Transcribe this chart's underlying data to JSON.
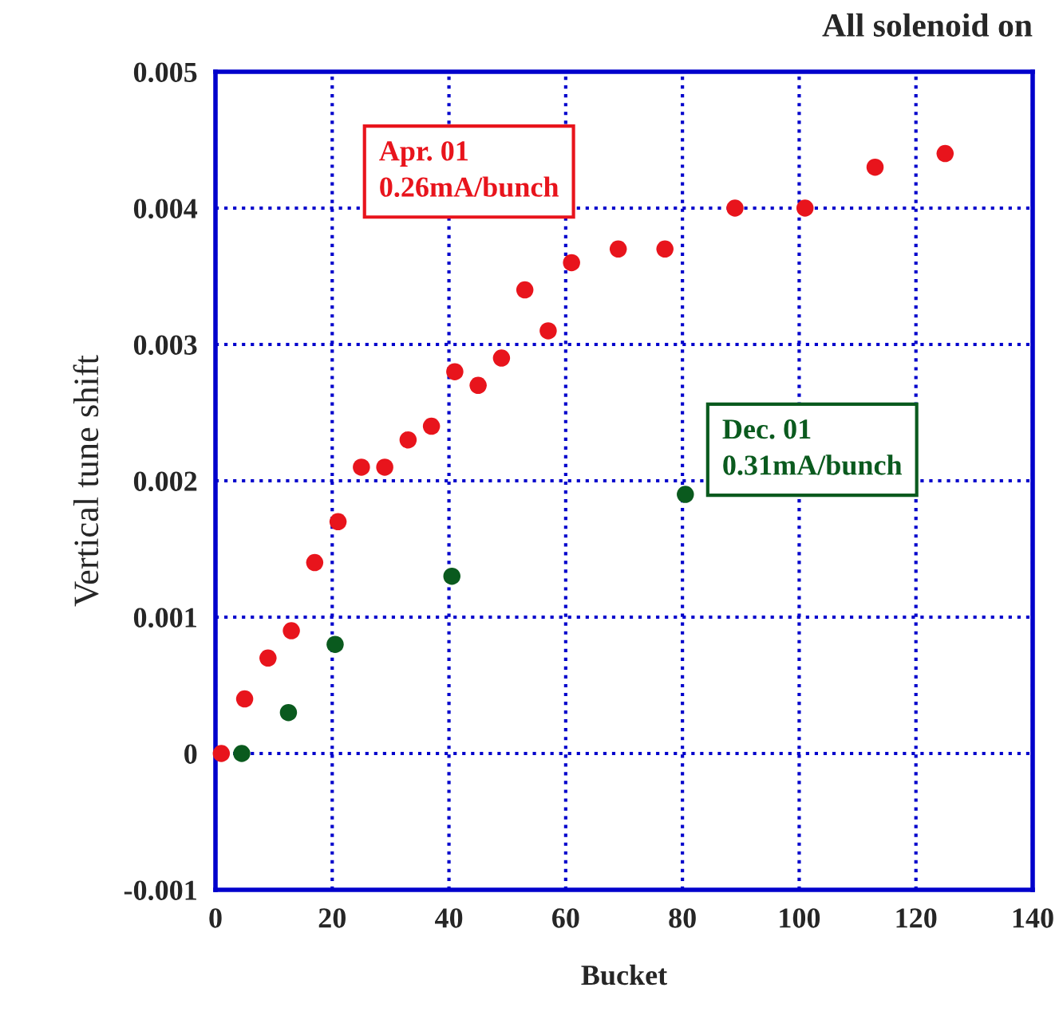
{
  "chart_data": {
    "type": "scatter",
    "title": "All solenoid on",
    "xlabel": "Bucket",
    "ylabel": "Vertical tune shift",
    "xlim": [
      0,
      140
    ],
    "xticks": [
      0,
      20,
      40,
      60,
      80,
      100,
      120,
      140
    ],
    "ylim": [
      -0.001,
      0.005
    ],
    "yticks": [
      {
        "value": -0.001,
        "label": "-0.001"
      },
      {
        "value": 0,
        "label": "0"
      },
      {
        "value": 0.001,
        "label": "0.001"
      },
      {
        "value": 0.002,
        "label": "0.002"
      },
      {
        "value": 0.003,
        "label": "0.003"
      },
      {
        "value": 0.004,
        "label": "0.004"
      },
      {
        "value": 0.005,
        "label": "0.005"
      }
    ],
    "grid": true,
    "marker": "circle",
    "series": [
      {
        "name": "Apr. 01\n0.26mA/bunch",
        "color": "#e8141c",
        "x": [
          1,
          5,
          9,
          13,
          17,
          21,
          25,
          29,
          33,
          37,
          41,
          45,
          49,
          53,
          57,
          61,
          69,
          77,
          89,
          101,
          113,
          125
        ],
        "values": [
          0,
          0.0004,
          0.0007,
          0.0009,
          0.0014,
          0.0017,
          0.0021,
          0.0021,
          0.0023,
          0.0024,
          0.0028,
          0.0027,
          0.0029,
          0.0034,
          0.0031,
          0.0036,
          0.0037,
          0.0037,
          0.004,
          0.004,
          0.0043,
          0.0044
        ]
      },
      {
        "name": "Dec. 01\n0.31mA/bunch",
        "color": "#0a5a1e",
        "x": [
          4.5,
          12.5,
          20.5,
          40.5,
          80.5
        ],
        "values": [
          0,
          0.0003,
          0.0008,
          0.0013,
          0.0019
        ]
      }
    ]
  }
}
